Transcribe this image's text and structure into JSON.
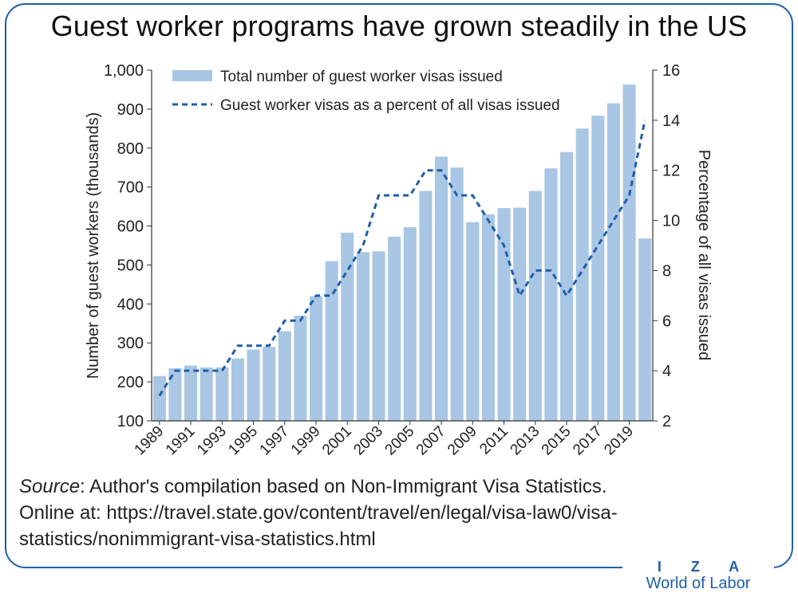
{
  "title": "Guest worker programs have grown steadily in the US",
  "source": {
    "label": "Source",
    "text": ": Author's compilation based on Non-Immigrant Visa Statistics.",
    "line2": "Online at: https://travel.state.gov/content/travel/en/legal/visa-law0/visa-",
    "line3": "statistics/nonimmigrant-visa-statistics.html"
  },
  "logo": {
    "top": "I Z A",
    "bottom": "World of Labor"
  },
  "colors": {
    "bar": "#a9c6e4",
    "line": "#1f5fa8",
    "frame": "#1f5fa8"
  },
  "chart_data": {
    "type": "bar",
    "x": [
      1989,
      1990,
      1991,
      1992,
      1993,
      1994,
      1995,
      1996,
      1997,
      1998,
      1999,
      2000,
      2001,
      2002,
      2003,
      2004,
      2005,
      2006,
      2007,
      2008,
      2009,
      2010,
      2011,
      2012,
      2013,
      2014,
      2015,
      2016,
      2017,
      2018,
      2019,
      2020
    ],
    "x_tick_labels": [
      "1989",
      "1991",
      "1993",
      "1995",
      "1997",
      "1999",
      "2001",
      "2003",
      "2005",
      "2007",
      "2009",
      "2011",
      "2013",
      "2015",
      "2017",
      "2019"
    ],
    "series": [
      {
        "name": "Total number of guest worker visas issued",
        "type": "bar",
        "axis": "left",
        "values": [
          215,
          235,
          242,
          237,
          237,
          260,
          283,
          290,
          330,
          370,
          420,
          510,
          583,
          533,
          535,
          573,
          597,
          690,
          778,
          750,
          610,
          630,
          646,
          647,
          690,
          748,
          790,
          850,
          883,
          915,
          963,
          568
        ]
      },
      {
        "name": "Guest worker visas as a percent of all visas issued",
        "type": "line",
        "style": "dashed",
        "axis": "right",
        "values": [
          3,
          4,
          4,
          4,
          4,
          5,
          5,
          5,
          6,
          6,
          7,
          7,
          8,
          9,
          11,
          11,
          11,
          12,
          12,
          11,
          11,
          10,
          9,
          7,
          8,
          8,
          7,
          8,
          9,
          10,
          11,
          14
        ]
      }
    ],
    "ylabel": "Number of guest workers (thousands)",
    "ylim": [
      100,
      1000
    ],
    "y_ticks": [
      "100",
      "200",
      "300",
      "400",
      "500",
      "600",
      "700",
      "800",
      "900",
      "1,000"
    ],
    "y2label": "Percentage of all visas issued",
    "y2lim": [
      2,
      16
    ],
    "y2_ticks": [
      "2",
      "4",
      "6",
      "8",
      "10",
      "12",
      "14",
      "16"
    ],
    "legend_position": "top-left",
    "grid": false
  }
}
